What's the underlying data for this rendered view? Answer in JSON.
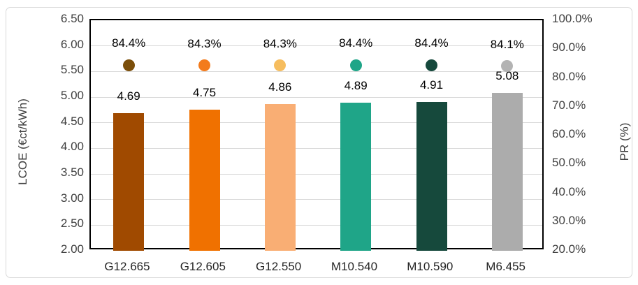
{
  "chart_data": {
    "type": "bar",
    "subtype": "bar-with-scatter-secondary-axis",
    "categories": [
      "G12.665",
      "G12.605",
      "G12.550",
      "M10.540",
      "M10.590",
      "M6.455"
    ],
    "series": [
      {
        "name": "LCOE",
        "type": "bar",
        "axis": "left",
        "values": [
          4.69,
          4.75,
          4.86,
          4.89,
          4.91,
          5.08
        ],
        "labels": [
          "4.69",
          "4.75",
          "4.86",
          "4.89",
          "4.91",
          "5.08"
        ],
        "colors": [
          "#A04A00",
          "#F07100",
          "#F9AE74",
          "#1FA588",
          "#16493C",
          "#ACACAC"
        ]
      },
      {
        "name": "PR",
        "type": "scatter",
        "axis": "right",
        "values": [
          84.4,
          84.3,
          84.3,
          84.4,
          84.4,
          84.1
        ],
        "labels": [
          "84.4%",
          "84.3%",
          "84.3%",
          "84.4%",
          "84.4%",
          "84.1%"
        ],
        "colors": [
          "#7B4E0A",
          "#F37B1C",
          "#F6BD5E",
          "#1FA588",
          "#16493C",
          "#B3B3B3"
        ]
      }
    ],
    "left_axis": {
      "title": "LCOE (€ct/kWh)",
      "min": 2.0,
      "max": 6.5,
      "step": 0.5,
      "ticks": [
        "6.50",
        "6.00",
        "5.50",
        "5.00",
        "4.50",
        "4.00",
        "3.50",
        "3.00",
        "2.50",
        "2.00"
      ]
    },
    "right_axis": {
      "title": "PR (%)",
      "min": 20,
      "max": 100,
      "step": 10,
      "ticks": [
        "100.0%",
        "90.0%",
        "80.0%",
        "70.0%",
        "60.0%",
        "50.0%",
        "40.0%",
        "30.0%",
        "20.0%"
      ]
    },
    "grid": true,
    "legend": "none",
    "colors": {
      "gridline": "#d9d9d9",
      "plot_border": "#000000",
      "frame_border": "#d9d9d9",
      "tick_text": "#404040",
      "category_text": "#262626",
      "data_label_text": "#000000"
    }
  }
}
